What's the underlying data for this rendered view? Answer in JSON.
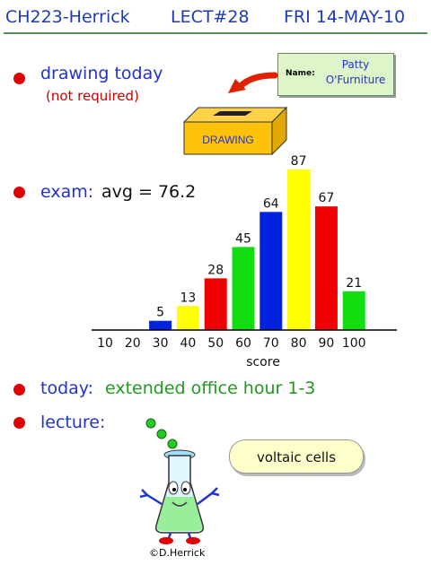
{
  "header": {
    "course": "CH223-Herrick",
    "lecture": "LECT#28",
    "date": "FRI 14-MAY-10"
  },
  "items": {
    "drawing": {
      "label": "drawing today",
      "note": "(not required)"
    },
    "exam": {
      "label": "exam:",
      "avg": "avg = 76.2"
    },
    "today": {
      "label": "today:",
      "text": "extended office hour 1-3"
    },
    "lecture": {
      "label": "lecture:"
    }
  },
  "namecard": {
    "label": "Name:",
    "value": "Patty\nO'Furniture"
  },
  "box": {
    "label": "DRAWING"
  },
  "balloon": {
    "text": "voltaic cells"
  },
  "credit": "©D.Herrick",
  "colors": {
    "header_text": "#1f3bb3",
    "bullet": "#e00000",
    "bar_blue": "#0022dd",
    "bar_yellow": "#ffff00",
    "bar_red": "#ee0000",
    "bar_green": "#11dd11"
  },
  "chart_data": {
    "type": "bar",
    "xlabel": "score",
    "categories": [
      "10",
      "20",
      "30",
      "40",
      "50",
      "60",
      "70",
      "80",
      "90",
      "100"
    ],
    "values": [
      0,
      0,
      5,
      13,
      28,
      45,
      64,
      87,
      67,
      21
    ],
    "data_labels": [
      "",
      "",
      "5",
      "13",
      "28",
      "45",
      "64",
      "87",
      "67",
      "21"
    ],
    "bar_colors": [
      "blue",
      "yellow",
      "blue",
      "yellow",
      "red",
      "green",
      "blue",
      "yellow",
      "red",
      "green"
    ],
    "ylim": [
      0,
      87
    ],
    "grid": false,
    "legend": "none"
  }
}
